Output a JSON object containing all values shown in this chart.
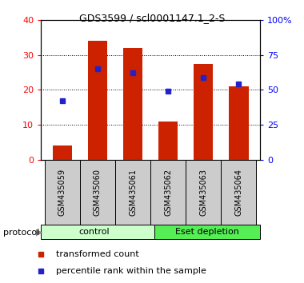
{
  "title": "GDS3599 / scl0001147.1_2-S",
  "categories": [
    "GSM435059",
    "GSM435060",
    "GSM435061",
    "GSM435062",
    "GSM435063",
    "GSM435064"
  ],
  "bar_values": [
    4.0,
    34.0,
    32.0,
    11.0,
    27.5,
    21.0
  ],
  "percentile_values": [
    42,
    65,
    62,
    49,
    59,
    54
  ],
  "bar_color": "#cc2200",
  "percentile_color": "#2222cc",
  "ylim_left": [
    0,
    40
  ],
  "ylim_right": [
    0,
    100
  ],
  "yticks_left": [
    0,
    10,
    20,
    30,
    40
  ],
  "yticks_right": [
    0,
    25,
    50,
    75,
    100
  ],
  "ytick_labels_right": [
    "0",
    "25",
    "50",
    "75",
    "100%"
  ],
  "group_labels": [
    "control",
    "Eset depletion"
  ],
  "group_bg_color_control": "#ccffcc",
  "group_bg_color_eset": "#55ee55",
  "protocol_label": "protocol",
  "legend_items": [
    "transformed count",
    "percentile rank within the sample"
  ],
  "legend_colors": [
    "#cc2200",
    "#2222cc"
  ],
  "bg_color": "#ffffff",
  "label_area_color": "#cccccc",
  "title_fontsize": 9,
  "axis_fontsize": 8,
  "label_fontsize": 7,
  "legend_fontsize": 8
}
